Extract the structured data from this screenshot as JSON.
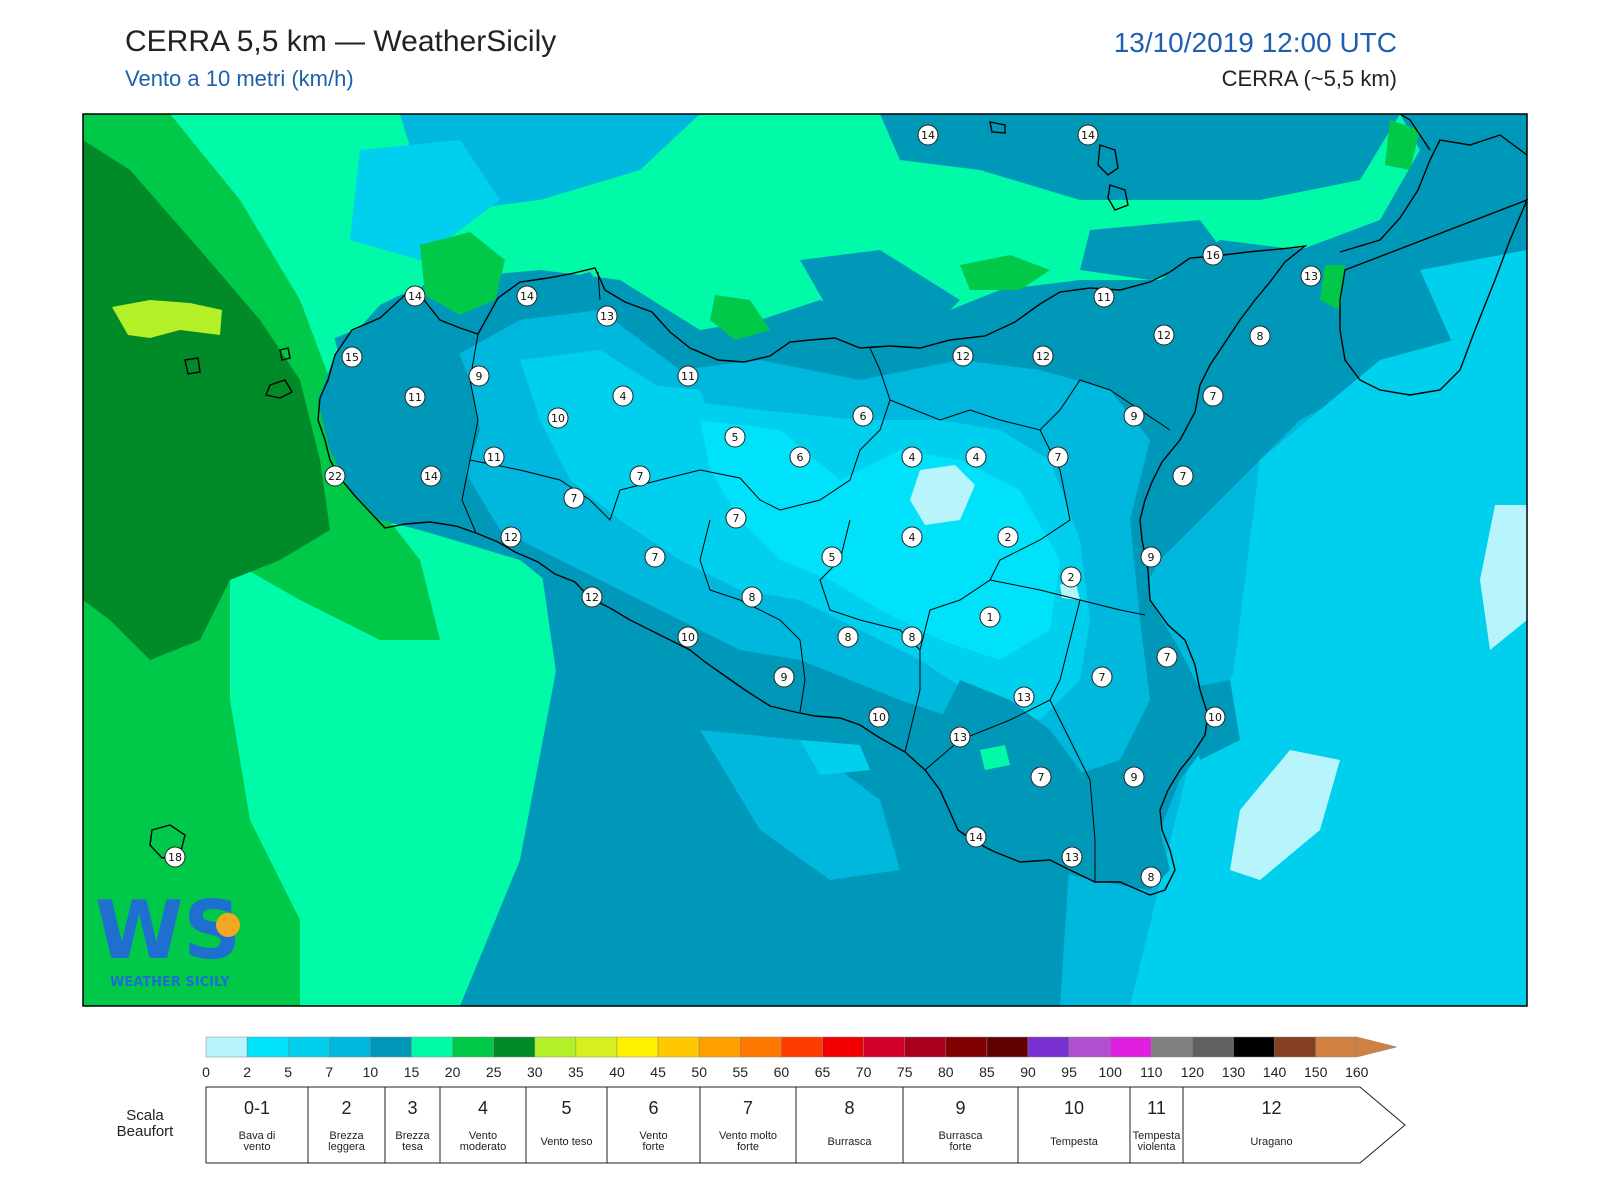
{
  "header": {
    "title": "CERRA 5,5 km — WeatherSicily",
    "subtitle": "Vento a 10 metri (km/h)",
    "datetime": "13/10/2019 12:00 UTC",
    "model": "CERRA (~5,5 km)"
  },
  "colorbar": {
    "ticks": [
      "0",
      "2",
      "5",
      "7",
      "10",
      "15",
      "20",
      "25",
      "30",
      "35",
      "40",
      "45",
      "50",
      "55",
      "60",
      "65",
      "70",
      "75",
      "80",
      "85",
      "90",
      "95",
      "100",
      "110",
      "120",
      "130",
      "140",
      "150",
      "160"
    ],
    "colors": [
      "#b8f4fb",
      "#00e1fa",
      "#00cfee",
      "#00b8dd",
      "#0098b8",
      "#00faa8",
      "#00c848",
      "#008a28",
      "#b4f028",
      "#d8f020",
      "#fff000",
      "#ffc800",
      "#ffa000",
      "#ff7800",
      "#ff3c00",
      "#f00000",
      "#d0002a",
      "#a8001a",
      "#800000",
      "#600000",
      "#7830d0",
      "#b050d0",
      "#e020e0",
      "#808080",
      "#606060",
      "#000000",
      "#844020",
      "#d08040"
    ]
  },
  "beaufort": {
    "label": "Scala Beaufort",
    "levels": [
      {
        "num": "0-1",
        "desc1": "Bava di",
        "desc2": "vento"
      },
      {
        "num": "2",
        "desc1": "Brezza",
        "desc2": "leggera"
      },
      {
        "num": "3",
        "desc1": "Brezza",
        "desc2": "tesa"
      },
      {
        "num": "4",
        "desc1": "Vento",
        "desc2": "moderato"
      },
      {
        "num": "5",
        "desc1": "Vento teso",
        "desc2": ""
      },
      {
        "num": "6",
        "desc1": "Vento",
        "desc2": "forte"
      },
      {
        "num": "7",
        "desc1": "Vento molto",
        "desc2": "forte"
      },
      {
        "num": "8",
        "desc1": "Burrasca",
        "desc2": ""
      },
      {
        "num": "9",
        "desc1": "Burrasca",
        "desc2": "forte"
      },
      {
        "num": "10",
        "desc1": "Tempesta",
        "desc2": ""
      },
      {
        "num": "11",
        "desc1": "Tempesta",
        "desc2": "violenta"
      },
      {
        "num": "12",
        "desc1": "Uragano",
        "desc2": ""
      }
    ]
  },
  "stations": [
    "14",
    "14",
    "14",
    "14",
    "13",
    "16",
    "13",
    "11",
    "15",
    "9",
    "12",
    "8",
    "11",
    "11",
    "12",
    "12",
    "7",
    "10",
    "4",
    "6",
    "9",
    "5",
    "6",
    "4",
    "4",
    "7",
    "11",
    "14",
    "7",
    "7",
    "22",
    "7",
    "4",
    "2",
    "12",
    "7",
    "5",
    "9",
    "2",
    "7",
    "8",
    "1",
    "12",
    "8",
    "8",
    "10",
    "7",
    "9",
    "7",
    "13",
    "10",
    "10",
    "13",
    "7",
    "9",
    "14",
    "13",
    "8",
    "18"
  ],
  "logo": {
    "letters": "WS",
    "text": "WEATHER SICILY"
  }
}
